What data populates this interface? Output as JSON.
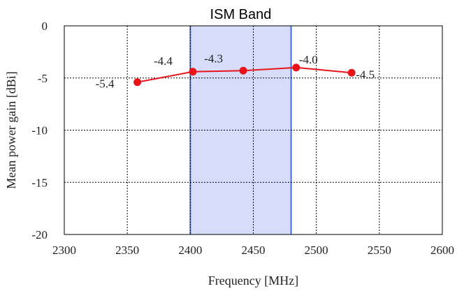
{
  "chart_data": {
    "type": "line",
    "xlabel": "Frequency [MHz]",
    "ylabel": "Mean power gain [dBi]",
    "xlim": [
      2300,
      2600
    ],
    "ylim": [
      -20,
      0
    ],
    "xticks": [
      2300,
      2350,
      2400,
      2450,
      2500,
      2550,
      2600
    ],
    "yticks": [
      0,
      -5,
      -10,
      -15,
      -20
    ],
    "grid": true,
    "band": {
      "label": "ISM Band",
      "x_start": 2400,
      "x_end": 2480,
      "fill": "#d6dcfa",
      "edge": "#4a6fd6"
    },
    "series": [
      {
        "color": "#e8141a",
        "x": [
          2358,
          2402,
          2442,
          2484,
          2528
        ],
        "y": [
          -5.4,
          -4.4,
          -4.3,
          -4.0,
          -4.5
        ],
        "labels": [
          "-5.4",
          "-4.4",
          "-4.3",
          "-4.0",
          "-4.5"
        ]
      }
    ]
  }
}
